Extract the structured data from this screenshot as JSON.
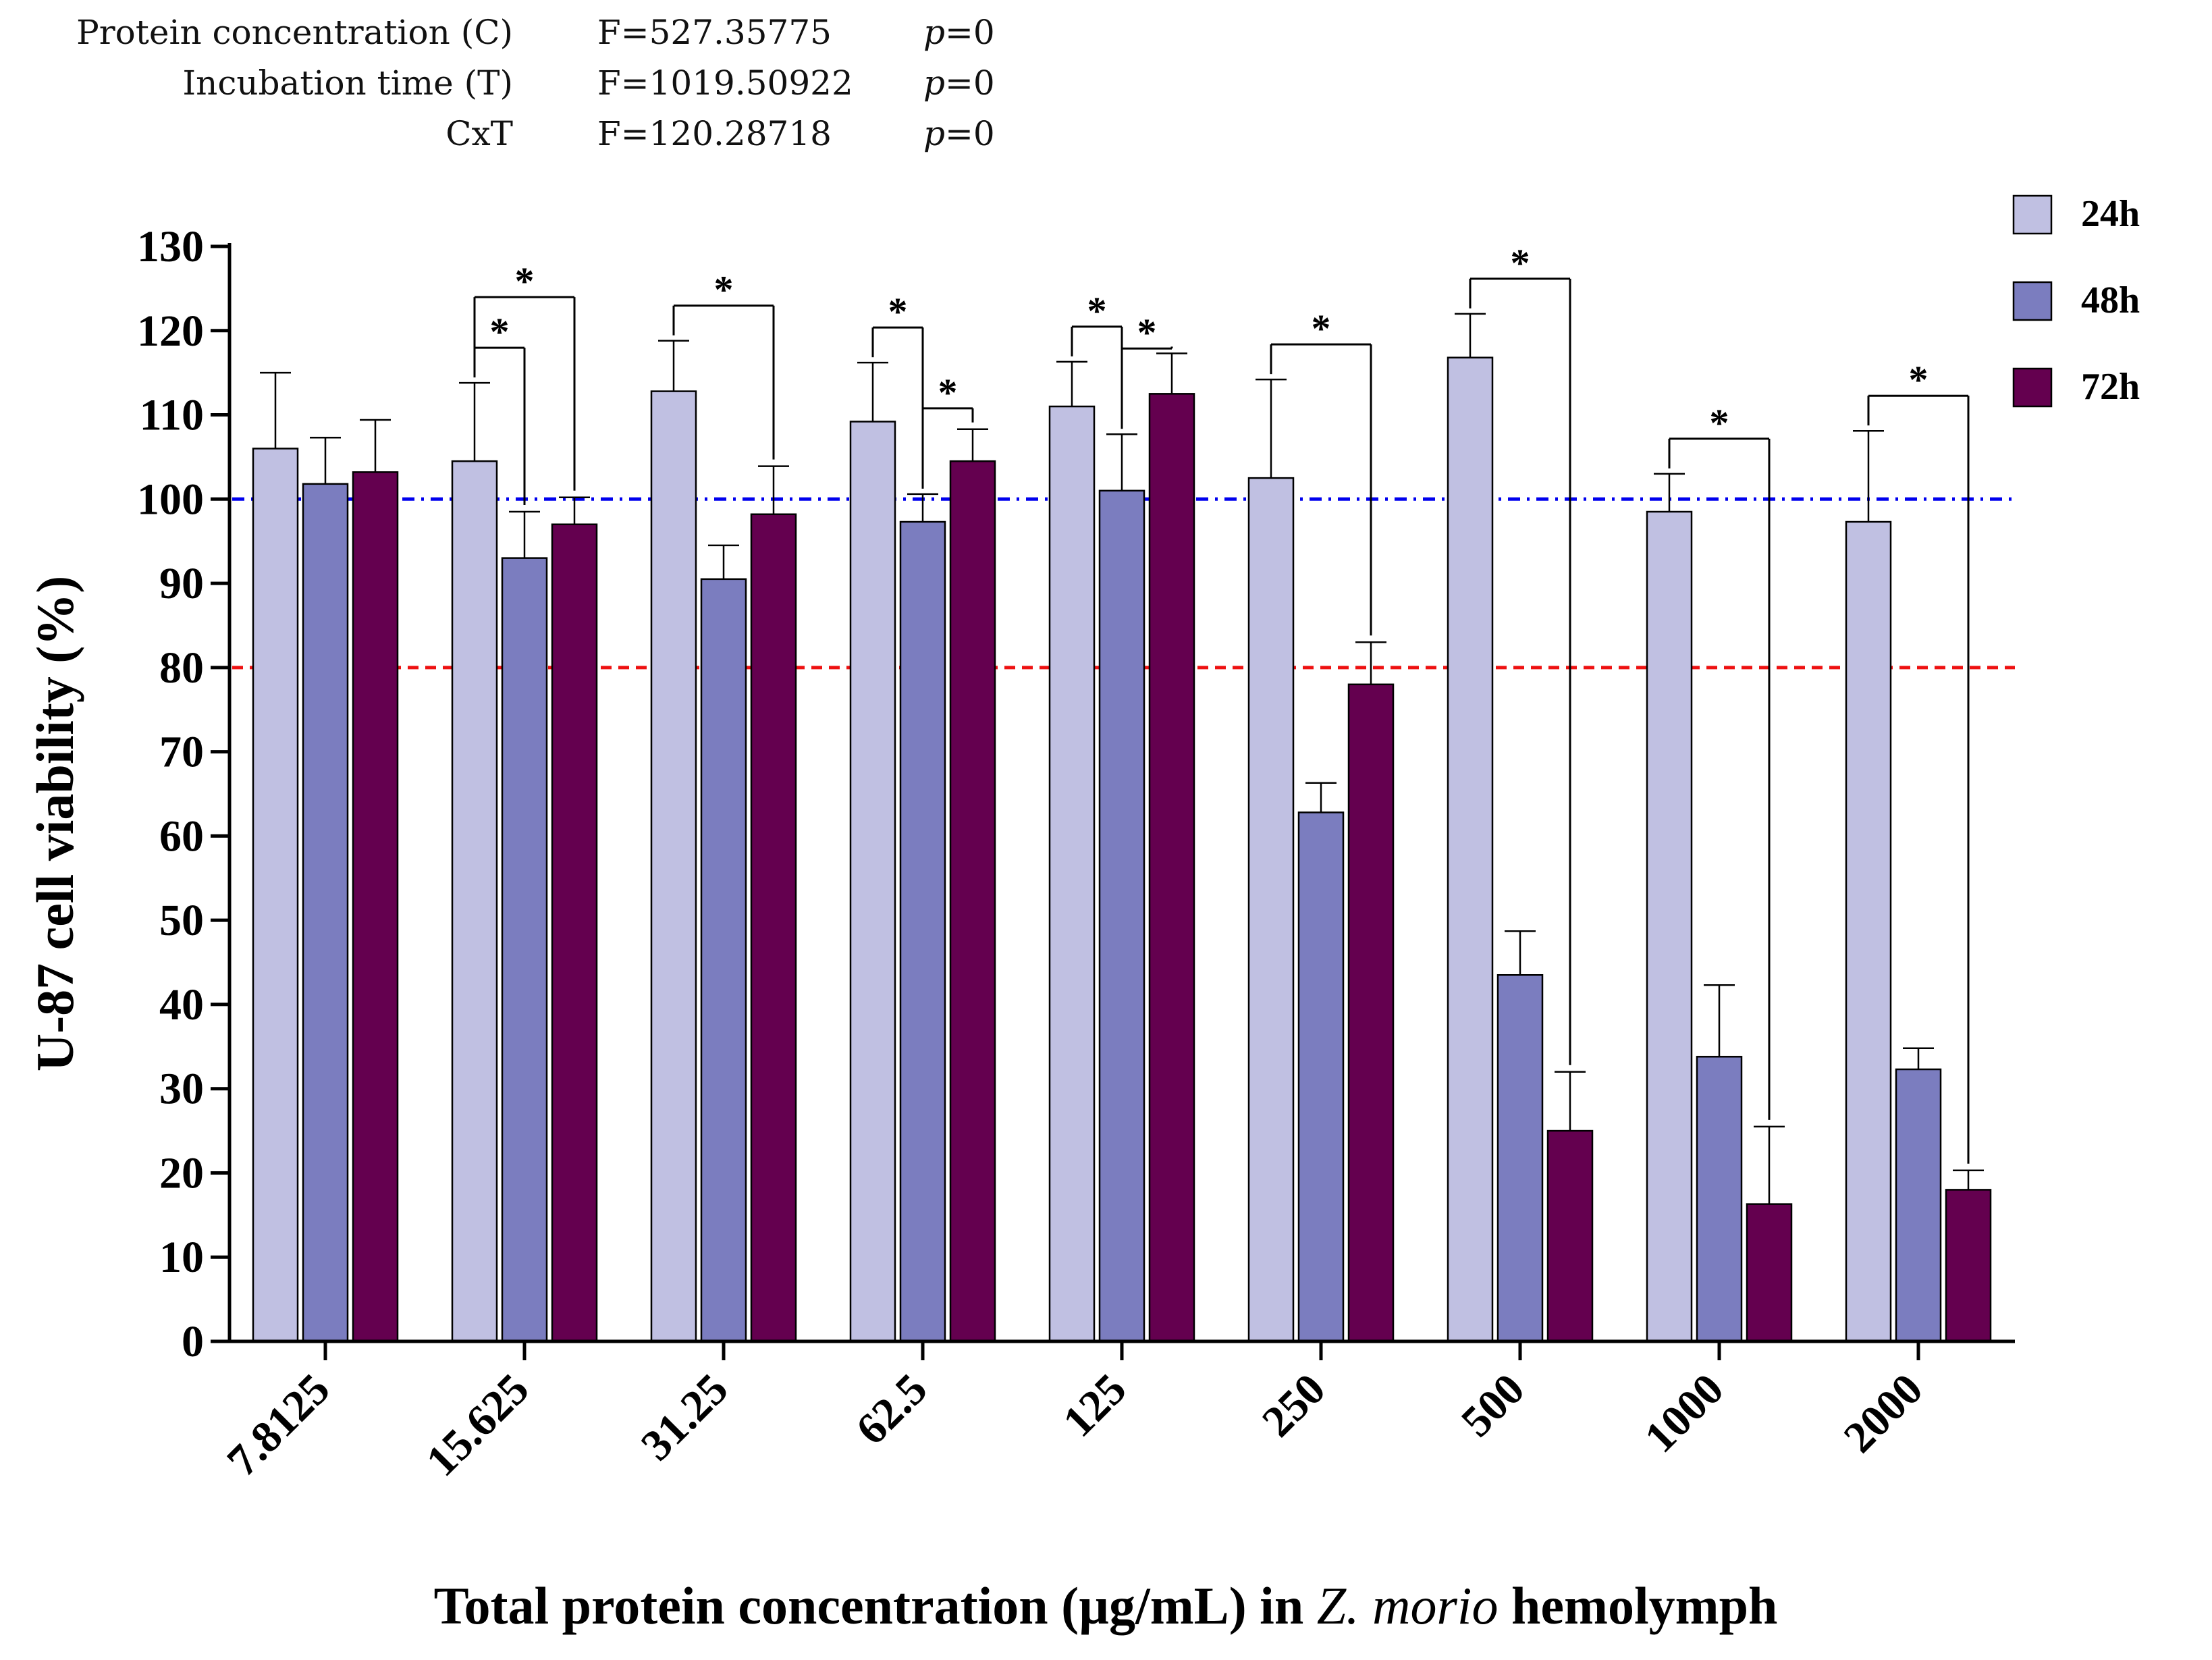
{
  "stats": [
    {
      "label": "Protein concentration (C)",
      "f": "F=527.35775",
      "p_sym": "p",
      "p_val": "=0"
    },
    {
      "label": "Incubation time (T)",
      "f": "F=1019.50922",
      "p_sym": "p",
      "p_val": "=0"
    },
    {
      "label": "CxT",
      "f": "F=120.28718",
      "p_sym": "p",
      "p_val": "=0"
    }
  ],
  "colors": {
    "s24": "#c0c0e2",
    "s48": "#7b7dbf",
    "s72": "#64004f",
    "ref100": "#0000ee",
    "ref80": "#ee1111"
  },
  "chart_data": {
    "type": "bar",
    "title": "",
    "ylabel": "U-87 cell viability (%)",
    "xlabel": {
      "before": "Total protein concentration (µg/mL) in ",
      "italic": "Z. morio",
      "after": " hemolymph"
    },
    "ylim": [
      0,
      130
    ],
    "yticks": [
      0,
      10,
      20,
      30,
      40,
      50,
      60,
      70,
      80,
      90,
      100,
      110,
      120,
      130
    ],
    "categories": [
      "7.8125",
      "15.625",
      "31.25",
      "62.5",
      "125",
      "250",
      "500",
      "1000",
      "2000"
    ],
    "series": [
      {
        "name": "24h",
        "values": [
          106,
          104.5,
          112.8,
          109.2,
          111,
          102.5,
          116.8,
          98.5,
          97.3
        ],
        "errors": [
          9,
          9.3,
          6,
          7,
          5.3,
          11.7,
          5.2,
          4.5,
          10.8
        ]
      },
      {
        "name": "48h",
        "values": [
          101.8,
          93,
          90.5,
          97.3,
          101,
          62.8,
          43.5,
          33.8,
          32.3
        ],
        "errors": [
          5.5,
          5.5,
          4,
          3.3,
          6.7,
          3.5,
          5.2,
          8.5,
          2.5
        ]
      },
      {
        "name": "72h",
        "values": [
          103.2,
          97,
          98.2,
          104.5,
          112.5,
          78,
          25,
          16.3,
          18
        ],
        "errors": [
          6.2,
          3.2,
          5.7,
          3.8,
          4.8,
          5,
          7,
          9.2,
          2.3
        ]
      }
    ],
    "reference_lines": [
      {
        "y": 100,
        "style": "dash-dot",
        "color": "blue"
      },
      {
        "y": 80,
        "style": "dashed",
        "color": "red"
      }
    ],
    "significance": [
      {
        "category": 1,
        "from": "24h",
        "to": "48h",
        "level": 1,
        "label": "*"
      },
      {
        "category": 1,
        "from": "24h",
        "to": "72h",
        "level": 2,
        "label": "*"
      },
      {
        "category": 2,
        "from": "24h",
        "to": "72h",
        "level": 1,
        "label": "*"
      },
      {
        "category": 3,
        "from": "24h",
        "to": "48h",
        "level": 1,
        "label": "*"
      },
      {
        "category": 3,
        "from": "48h",
        "to": "72h",
        "level": 2,
        "label": "*"
      },
      {
        "category": 4,
        "from": "24h",
        "to": "48h",
        "level": 1,
        "label": "*"
      },
      {
        "category": 4,
        "from": "48h",
        "to": "72h",
        "level": 2,
        "label": "*"
      },
      {
        "category": 5,
        "from": "24h",
        "to": "72h",
        "level": 1,
        "label": "*"
      },
      {
        "category": 6,
        "from": "24h",
        "to": "72h",
        "level": 1,
        "label": "*"
      },
      {
        "category": 7,
        "from": "24h",
        "to": "72h",
        "level": 1,
        "label": "*"
      },
      {
        "category": 8,
        "from": "24h",
        "to": "72h",
        "level": 1,
        "label": "*"
      }
    ],
    "legend": {
      "position": "top-right",
      "entries": [
        "24h",
        "48h",
        "72h"
      ]
    },
    "grid": false
  }
}
